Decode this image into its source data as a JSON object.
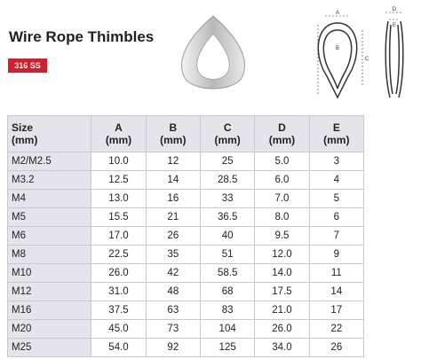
{
  "header": {
    "title": "Wire Rope Thimbles",
    "badge": "316 SS"
  },
  "diagram": {
    "labels": [
      "A",
      "B",
      "C",
      "D",
      "E"
    ]
  },
  "table": {
    "columns": [
      [
        "Size",
        "(mm)"
      ],
      [
        "A",
        "(mm)"
      ],
      [
        "B",
        "(mm)"
      ],
      [
        "C",
        "(mm)"
      ],
      [
        "D",
        "(mm)"
      ],
      [
        "E",
        "(mm)"
      ]
    ],
    "rows": [
      [
        "M2/M2.5",
        "10.0",
        "12",
        "25",
        "5.0",
        "3"
      ],
      [
        "M3.2",
        "12.5",
        "14",
        "28.5",
        "6.0",
        "4"
      ],
      [
        "M4",
        "13.0",
        "16",
        "33",
        "7.0",
        "5"
      ],
      [
        "M5",
        "15.5",
        "21",
        "36.5",
        "8.0",
        "6"
      ],
      [
        "M6",
        "17.0",
        "26",
        "40",
        "9.5",
        "7"
      ],
      [
        "M8",
        "22.5",
        "35",
        "51",
        "12.0",
        "9"
      ],
      [
        "M10",
        "26.0",
        "42",
        "58.5",
        "14.0",
        "11"
      ],
      [
        "M12",
        "31.0",
        "48",
        "68",
        "17.5",
        "14"
      ],
      [
        "M16",
        "37.5",
        "63",
        "83",
        "21.0",
        "17"
      ],
      [
        "M20",
        "45.0",
        "73",
        "104",
        "26.0",
        "22"
      ],
      [
        "M25",
        "54.0",
        "92",
        "125",
        "34.0",
        "26"
      ]
    ]
  }
}
